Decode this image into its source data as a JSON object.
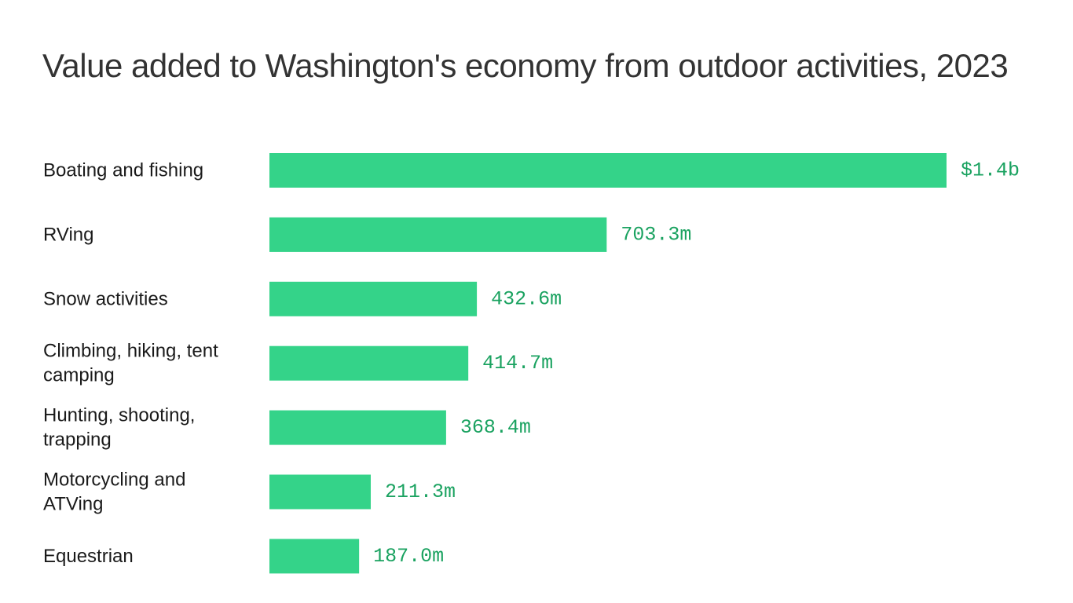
{
  "chart_data": {
    "type": "bar",
    "orientation": "horizontal",
    "title": "Value added to Washington's economy from outdoor activities, 2023",
    "xlabel": "",
    "ylabel": "",
    "unit": "USD",
    "categories": [
      "Boating and fishing",
      "RVing",
      "Snow activities",
      "Climbing, hiking, tent camping",
      "Hunting, shooting, trapping",
      "Motorcycling and ATVing",
      "Equestrian"
    ],
    "category_lines": [
      [
        "Boating and fishing"
      ],
      [
        "RVing"
      ],
      [
        "Snow activities"
      ],
      [
        "Climbing, hiking, tent",
        "camping"
      ],
      [
        "Hunting, shooting,",
        "trapping"
      ],
      [
        "Motorcycling and",
        "ATVing"
      ],
      [
        "Equestrian"
      ]
    ],
    "values": [
      1412.0,
      703.3,
      432.6,
      414.7,
      368.4,
      211.3,
      187.0
    ],
    "value_labels": [
      "$1.4b",
      "703.3m",
      "432.6m",
      "414.7m",
      "368.4m",
      "211.3m",
      "187.0m"
    ],
    "xlim": [
      0,
      1412
    ],
    "grid": false,
    "legend": "none",
    "colors": {
      "bar": "#34d389",
      "value_label": "#1aa260",
      "title": "#333333",
      "category_label": "#1a1a1a"
    }
  }
}
